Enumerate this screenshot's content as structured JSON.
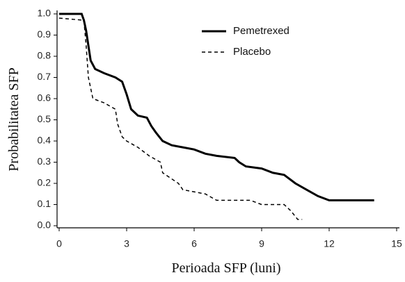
{
  "chart_data": {
    "type": "line",
    "xlabel": "Perioada SFP (luni)",
    "ylabel": "Probabilitatea SFP",
    "xlim": [
      0,
      15
    ],
    "ylim": [
      0,
      1
    ],
    "xticks": [
      0,
      3,
      6,
      9,
      12,
      15
    ],
    "yticks": [
      {
        "value": 0,
        "label": "0.0"
      },
      0.1,
      0.2,
      0.3,
      0.4,
      0.5,
      0.6,
      0.7,
      0.8,
      0.9,
      {
        "value": 1,
        "label": "1.0"
      }
    ],
    "series": [
      {
        "name": "Pemetrexed",
        "color": "#000000",
        "style": "solid",
        "x": [
          0,
          1.0,
          1.1,
          1.2,
          1.3,
          1.4,
          1.6,
          2.0,
          2.5,
          2.8,
          3.0,
          3.2,
          3.5,
          3.9,
          4.1,
          4.3,
          4.6,
          5.0,
          5.5,
          6.0,
          6.5,
          7.0,
          7.8,
          8.0,
          8.3,
          9.0,
          9.5,
          10.0,
          10.5,
          11.0,
          11.5,
          12.0,
          14.0
        ],
        "values": [
          1.0,
          1.0,
          0.97,
          0.92,
          0.85,
          0.78,
          0.74,
          0.72,
          0.7,
          0.68,
          0.62,
          0.55,
          0.52,
          0.51,
          0.47,
          0.44,
          0.4,
          0.38,
          0.37,
          0.36,
          0.34,
          0.33,
          0.32,
          0.3,
          0.28,
          0.27,
          0.25,
          0.24,
          0.2,
          0.17,
          0.14,
          0.12,
          0.12
        ]
      },
      {
        "name": "Placebo",
        "color": "#000000",
        "style": "dashed",
        "x": [
          0,
          1.1,
          1.2,
          1.3,
          1.5,
          2.0,
          2.5,
          2.6,
          2.8,
          3.0,
          3.5,
          4.0,
          4.5,
          4.6,
          5.3,
          5.5,
          6.5,
          7.0,
          8.5,
          9.0,
          10.0,
          10.3,
          10.6,
          10.8
        ],
        "values": [
          0.98,
          0.97,
          0.85,
          0.7,
          0.6,
          0.58,
          0.55,
          0.48,
          0.42,
          0.4,
          0.37,
          0.33,
          0.3,
          0.25,
          0.2,
          0.17,
          0.15,
          0.12,
          0.12,
          0.1,
          0.1,
          0.07,
          0.03,
          0.03
        ]
      }
    ]
  }
}
